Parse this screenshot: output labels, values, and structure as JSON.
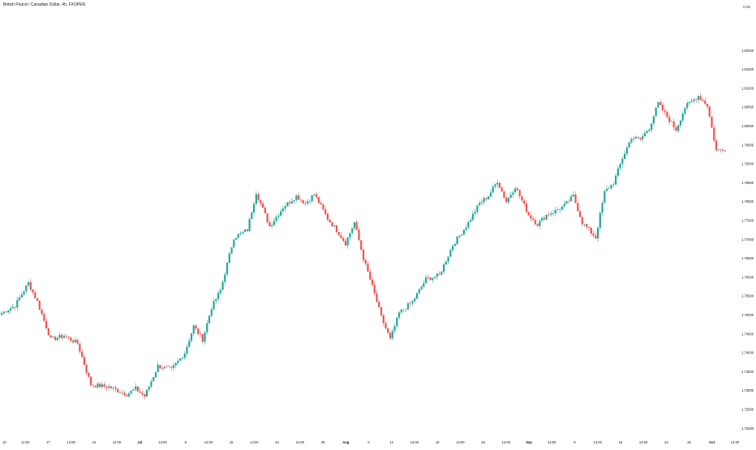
{
  "chart_data": {
    "type": "candlestick",
    "title": "British Pound / Canadian Dollar, 4h, FXOPEN",
    "y_axis": {
      "position": "right",
      "unit_label": "CAD",
      "range": [
        1.7175,
        1.8325
      ],
      "ticks": [
        "1.82000",
        "1.81500",
        "1.81000",
        "1.80500",
        "1.80000",
        "1.79500",
        "1.79000",
        "1.78500",
        "1.78000",
        "1.77500",
        "1.77000",
        "1.76500",
        "1.76000",
        "1.75500",
        "1.75000",
        "1.74500",
        "1.74000",
        "1.73500",
        "1.73000",
        "1.72500",
        "1.72000"
      ]
    },
    "x_axis": {
      "ticks": [
        {
          "label": "10",
          "bold": false
        },
        {
          "label": "14:00",
          "bold": false
        },
        {
          "label": "17",
          "bold": false
        },
        {
          "label": "14:00",
          "bold": false
        },
        {
          "label": "24",
          "bold": false
        },
        {
          "label": "14:00",
          "bold": false
        },
        {
          "label": "Jul",
          "bold": true
        },
        {
          "label": "14:00",
          "bold": false
        },
        {
          "label": "8",
          "bold": false
        },
        {
          "label": "14:00",
          "bold": false
        },
        {
          "label": "15",
          "bold": false
        },
        {
          "label": "14:00",
          "bold": false
        },
        {
          "label": "22",
          "bold": false
        },
        {
          "label": "14:00",
          "bold": false
        },
        {
          "label": "29",
          "bold": false
        },
        {
          "label": "Aug",
          "bold": true
        },
        {
          "label": "6",
          "bold": false
        },
        {
          "label": "12",
          "bold": false
        },
        {
          "label": "14:00",
          "bold": false
        },
        {
          "label": "19",
          "bold": false
        },
        {
          "label": "14:00",
          "bold": false
        },
        {
          "label": "26",
          "bold": false
        },
        {
          "label": "14:00",
          "bold": false
        },
        {
          "label": "Sep",
          "bold": true
        },
        {
          "label": "14:00",
          "bold": false
        },
        {
          "label": "9",
          "bold": false
        },
        {
          "label": "14:00",
          "bold": false
        },
        {
          "label": "16",
          "bold": false
        },
        {
          "label": "14:00",
          "bold": false
        },
        {
          "label": "23",
          "bold": false
        },
        {
          "label": "26",
          "bold": false
        },
        {
          "label": "Oct",
          "bold": true
        },
        {
          "label": "14:00",
          "bold": false
        }
      ]
    },
    "anchors": [
      [
        0,
        1.7505
      ],
      [
        6,
        1.7525
      ],
      [
        12,
        1.7585
      ],
      [
        16,
        1.7535
      ],
      [
        22,
        1.7435
      ],
      [
        28,
        1.7445
      ],
      [
        34,
        1.7425
      ],
      [
        40,
        1.7315
      ],
      [
        48,
        1.731
      ],
      [
        56,
        1.729
      ],
      [
        60,
        1.7305
      ],
      [
        64,
        1.7285
      ],
      [
        70,
        1.7365
      ],
      [
        76,
        1.7355
      ],
      [
        82,
        1.74
      ],
      [
        86,
        1.747
      ],
      [
        90,
        1.7435
      ],
      [
        94,
        1.752
      ],
      [
        98,
        1.7565
      ],
      [
        104,
        1.7705
      ],
      [
        110,
        1.7725
      ],
      [
        114,
        1.7825
      ],
      [
        120,
        1.7735
      ],
      [
        126,
        1.7785
      ],
      [
        132,
        1.7815
      ],
      [
        136,
        1.7795
      ],
      [
        140,
        1.782
      ],
      [
        146,
        1.7755
      ],
      [
        150,
        1.7725
      ],
      [
        154,
        1.769
      ],
      [
        158,
        1.7745
      ],
      [
        162,
        1.765
      ],
      [
        166,
        1.7575
      ],
      [
        170,
        1.7495
      ],
      [
        174,
        1.7435
      ],
      [
        178,
        1.7505
      ],
      [
        184,
        1.7535
      ],
      [
        190,
        1.7595
      ],
      [
        196,
        1.7605
      ],
      [
        202,
        1.7685
      ],
      [
        208,
        1.7735
      ],
      [
        214,
        1.7795
      ],
      [
        218,
        1.7815
      ],
      [
        222,
        1.7855
      ],
      [
        226,
        1.78
      ],
      [
        230,
        1.784
      ],
      [
        236,
        1.7765
      ],
      [
        240,
        1.774
      ],
      [
        244,
        1.7765
      ],
      [
        248,
        1.7775
      ],
      [
        252,
        1.779
      ],
      [
        256,
        1.7815
      ],
      [
        260,
        1.7745
      ],
      [
        266,
        1.7705
      ],
      [
        270,
        1.7825
      ],
      [
        274,
        1.785
      ],
      [
        278,
        1.7915
      ],
      [
        282,
        1.797
      ],
      [
        286,
        1.7965
      ],
      [
        290,
        1.7995
      ],
      [
        294,
        1.806
      ],
      [
        298,
        1.8025
      ],
      [
        302,
        1.799
      ],
      [
        306,
        1.805
      ],
      [
        312,
        1.808
      ],
      [
        316,
        1.8055
      ],
      [
        320,
        1.7935
      ],
      [
        324,
        1.794
      ]
    ],
    "grid": false,
    "legend": "none"
  }
}
